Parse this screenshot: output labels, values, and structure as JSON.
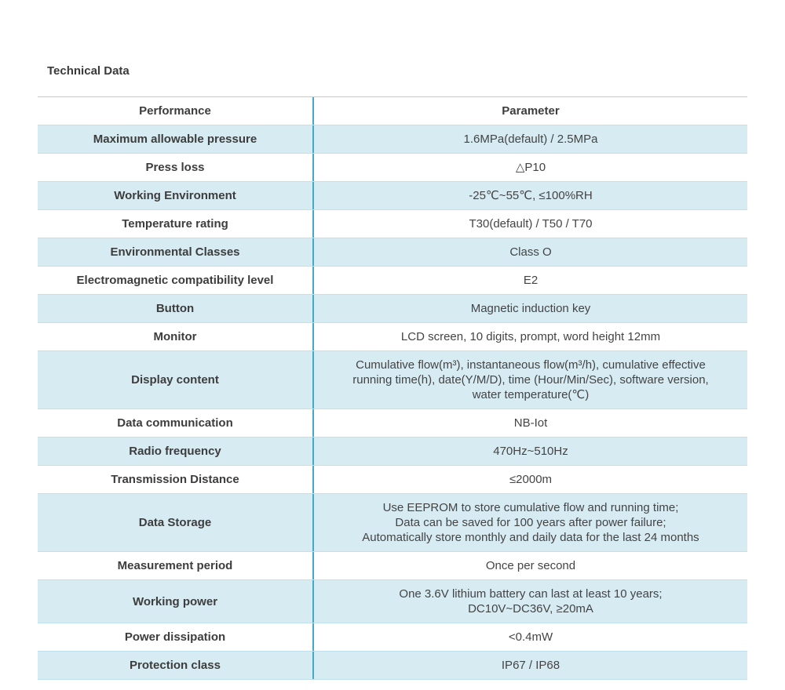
{
  "page": {
    "title": "Technical Data"
  },
  "table": {
    "header": {
      "performance": "Performance",
      "parameter": "Parameter"
    },
    "rows": [
      {
        "performance": "Maximum allowable pressure",
        "parameter": "1.6MPa(default) / 2.5MPa"
      },
      {
        "performance": "Press loss",
        "parameter": "△P10"
      },
      {
        "performance": "Working Environment",
        "parameter": "-25℃~55℃, ≤100%RH"
      },
      {
        "performance": "Temperature rating",
        "parameter": "T30(default) / T50 / T70"
      },
      {
        "performance": "Environmental Classes",
        "parameter": "Class O"
      },
      {
        "performance": "Electromagnetic compatibility level",
        "parameter": "E2"
      },
      {
        "performance": "Button",
        "parameter": "Magnetic induction key"
      },
      {
        "performance": "Monitor",
        "parameter": "LCD screen, 10 digits, prompt, word height 12mm"
      },
      {
        "performance": "Display content",
        "parameter": "Cumulative flow(m³), instantaneous flow(m³/h), cumulative effective\nrunning time(h), date(Y/M/D), time (Hour/Min/Sec), software version,\nwater temperature(℃)"
      },
      {
        "performance": "Data communication",
        "parameter": "NB-Iot"
      },
      {
        "performance": "Radio frequency",
        "parameter": "470Hz~510Hz"
      },
      {
        "performance": "Transmission Distance",
        "parameter": "≤2000m"
      },
      {
        "performance": "Data Storage",
        "parameter": "Use EEPROM to store cumulative flow and running time;\nData can be saved for 100 years after power failure;\nAutomatically store monthly and daily data for the last 24 months"
      },
      {
        "performance": "Measurement period",
        "parameter": "Once per second"
      },
      {
        "performance": "Working power",
        "parameter": "One 3.6V lithium battery can last at least 10 years;\nDC10V~DC36V, ≥20mA"
      },
      {
        "performance": "Power dissipation",
        "parameter": "<0.4mW"
      },
      {
        "performance": "Protection class",
        "parameter": "IP67 / IP68"
      }
    ],
    "colors": {
      "row_alt_bg": "#d7ebf3",
      "row_border": "#bfe0ee",
      "column_divider": "#45a8cb",
      "text": "#3d3d3d"
    }
  }
}
